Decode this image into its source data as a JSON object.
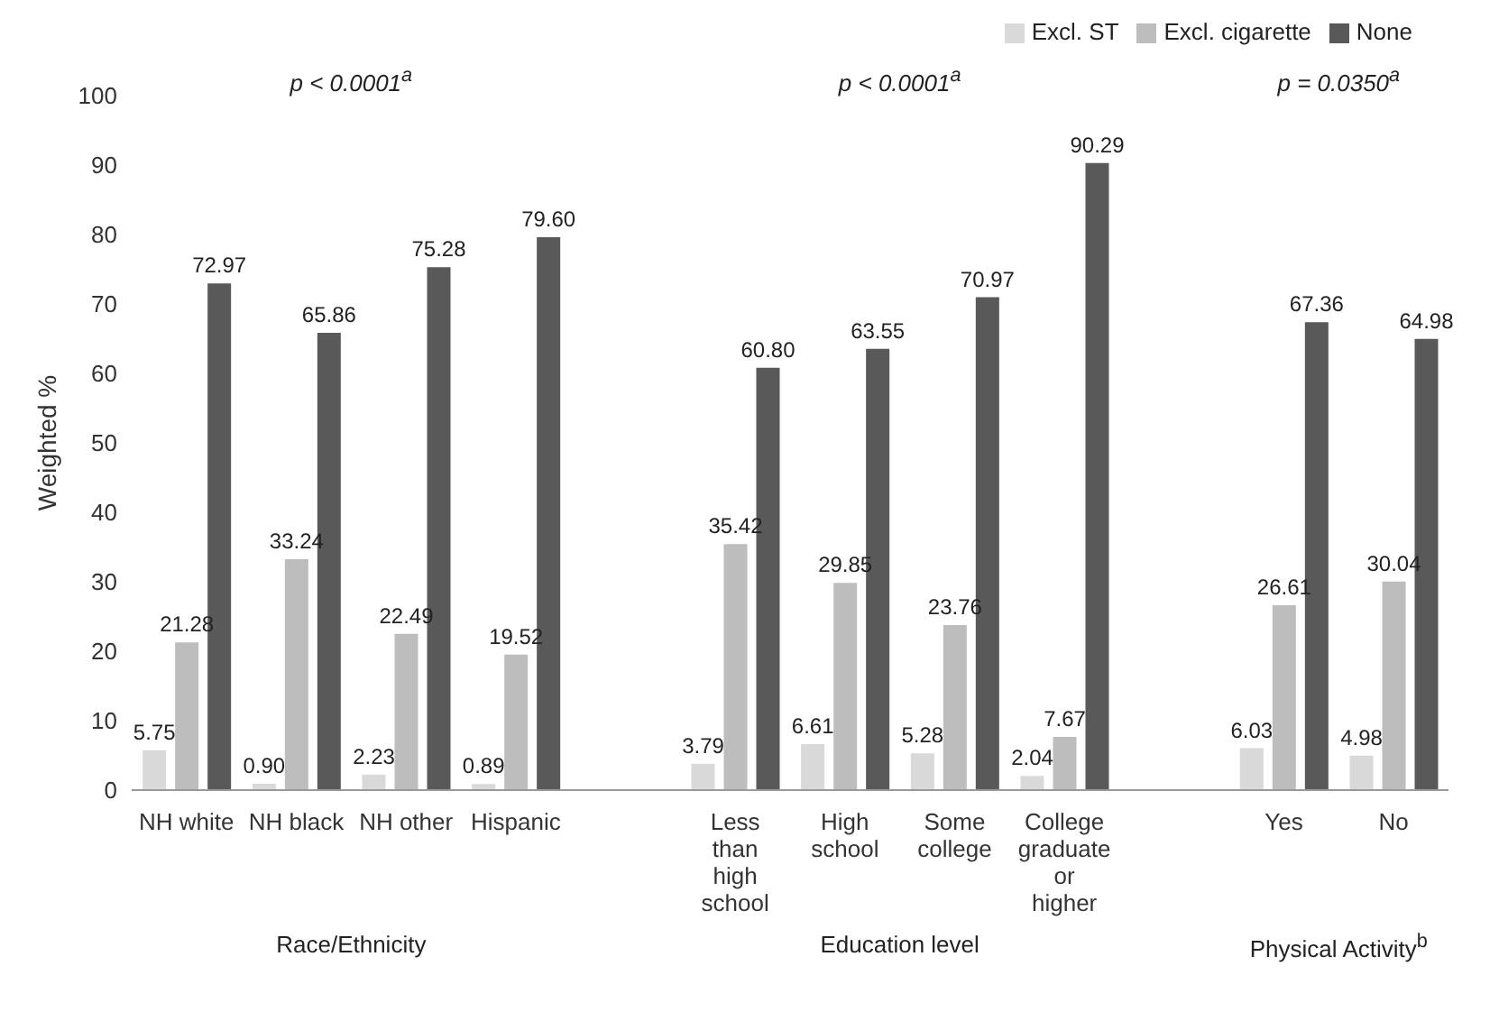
{
  "chart_data": {
    "type": "bar",
    "ylabel": "Weighted %",
    "categories": [
      "NH white",
      "NH black",
      "NH other",
      "Hispanic",
      null,
      "Less than high school",
      "High school",
      "Some college",
      "College graduate or higher",
      null,
      "Yes",
      "No"
    ],
    "series": [
      {
        "name": "Excl. ST",
        "color": "#d9d9d9",
        "values": [
          5.75,
          0.9,
          2.23,
          0.89,
          null,
          3.79,
          6.61,
          5.28,
          2.04,
          null,
          6.03,
          4.98
        ],
        "value_labels": [
          "5.75",
          "0.90",
          "2.23",
          "0.89",
          null,
          "3.79",
          "6.61",
          "5.28",
          "2.04",
          null,
          "6.03",
          "4.98"
        ]
      },
      {
        "name": "Excl. cigarette",
        "color": "#bdbdbd",
        "values": [
          21.28,
          33.24,
          22.49,
          19.52,
          null,
          35.42,
          29.85,
          23.76,
          7.67,
          null,
          26.61,
          30.04
        ],
        "value_labels": [
          "21.28",
          "33.24",
          "22.49",
          "19.52",
          null,
          "35.42",
          "29.85",
          "23.76",
          "7.67",
          null,
          "26.61",
          "30.04"
        ]
      },
      {
        "name": "None",
        "color": "#595959",
        "values": [
          72.97,
          65.86,
          75.28,
          79.6,
          null,
          60.8,
          63.55,
          70.97,
          90.29,
          null,
          67.36,
          64.98
        ],
        "value_labels": [
          "72.97",
          "65.86",
          "75.28",
          "79.60",
          null,
          "60.80",
          "63.55",
          "70.97",
          "90.29",
          null,
          "67.36",
          "64.98"
        ]
      }
    ],
    "ylim": [
      0,
      100
    ],
    "yticks": [
      0,
      10,
      20,
      30,
      40,
      50,
      60,
      70,
      80,
      90,
      100
    ],
    "grid": false,
    "legend": "top right",
    "annotations": [
      "p < 0.0001$^{a}$",
      "p < 0.0001$^{a}$",
      "p = 0.0350$^{a}$",
      "Race/Ethnicity",
      "Education level",
      "Physical Activity$^{b}$"
    ]
  }
}
